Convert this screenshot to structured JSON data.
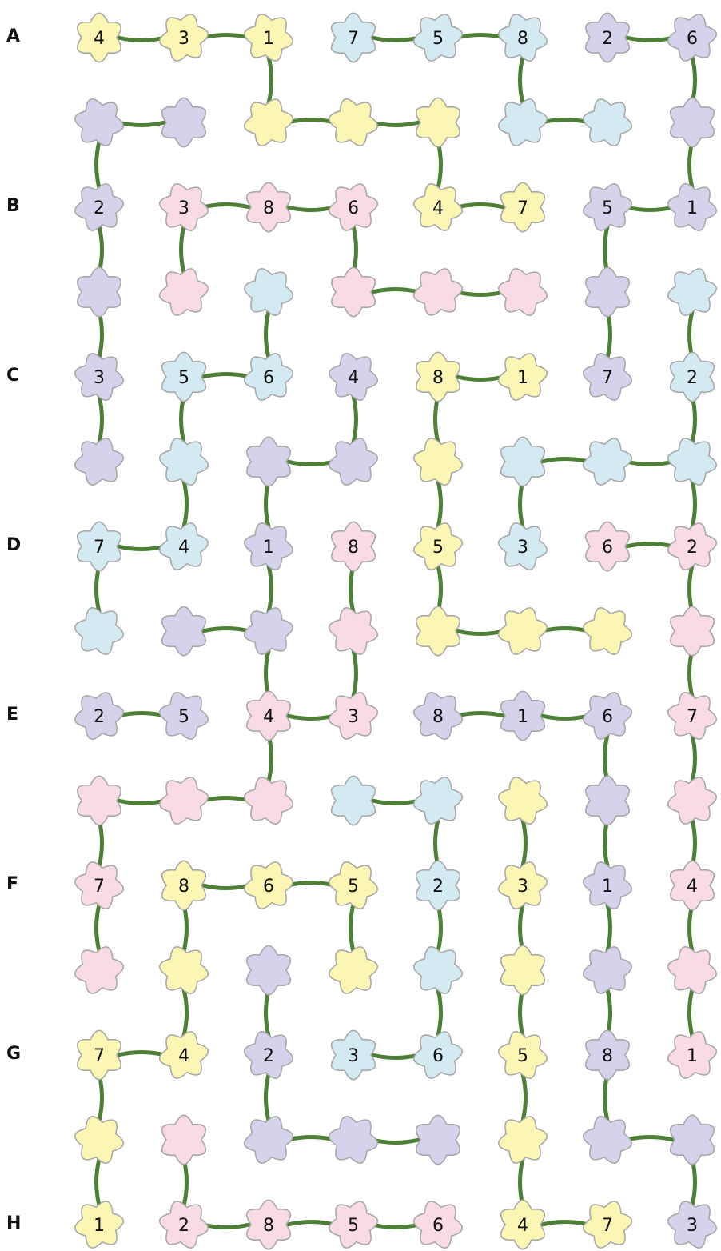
{
  "row_labels": [
    "A",
    "B",
    "C",
    "D",
    "E",
    "F",
    "G",
    "H"
  ],
  "colors": {
    "Y": "#fbf6b4",
    "B": "#d4eaf2",
    "P": "#d5d3eb",
    "K": "#f8dbe5",
    "outline": "#a8a8a8",
    "stem": "#4d7f36"
  },
  "flower_rows": [
    [
      "Y",
      "Y",
      "Y",
      "B",
      "B",
      "B",
      "P",
      "P"
    ],
    [
      "P",
      "P",
      "Y",
      "Y",
      "Y",
      "B",
      "B",
      "P"
    ],
    [
      "P",
      "K",
      "K",
      "K",
      "Y",
      "Y",
      "P",
      "P"
    ],
    [
      "P",
      "K",
      "B",
      "K",
      "K",
      "K",
      "P",
      "B"
    ],
    [
      "P",
      "B",
      "B",
      "P",
      "Y",
      "Y",
      "P",
      "B"
    ],
    [
      "P",
      "B",
      "P",
      "P",
      "Y",
      "B",
      "B",
      "B"
    ],
    [
      "B",
      "B",
      "P",
      "K",
      "Y",
      "B",
      "K",
      "K"
    ],
    [
      "B",
      "P",
      "P",
      "K",
      "Y",
      "Y",
      "Y",
      "K"
    ],
    [
      "P",
      "P",
      "K",
      "K",
      "P",
      "P",
      "P",
      "K"
    ],
    [
      "K",
      "K",
      "K",
      "B",
      "B",
      "Y",
      "P",
      "K"
    ],
    [
      "K",
      "Y",
      "Y",
      "Y",
      "B",
      "Y",
      "P",
      "K"
    ],
    [
      "K",
      "Y",
      "P",
      "Y",
      "B",
      "Y",
      "P",
      "K"
    ],
    [
      "Y",
      "Y",
      "P",
      "B",
      "B",
      "Y",
      "P",
      "K"
    ],
    [
      "Y",
      "K",
      "P",
      "P",
      "P",
      "Y",
      "P",
      "P"
    ],
    [
      "Y",
      "K",
      "K",
      "K",
      "K",
      "Y",
      "Y",
      "P"
    ]
  ],
  "numbers": [
    [
      "4",
      "3",
      "1",
      "7",
      "5",
      "8",
      "2",
      "6"
    ],
    [
      "2",
      "3",
      "8",
      "6",
      "4",
      "7",
      "5",
      "1"
    ],
    [
      "3",
      "5",
      "6",
      "4",
      "8",
      "1",
      "7",
      "2"
    ],
    [
      "7",
      "4",
      "1",
      "8",
      "5",
      "3",
      "6",
      "2"
    ],
    [
      "2",
      "5",
      "4",
      "3",
      "8",
      "1",
      "6",
      "7"
    ],
    [
      "7",
      "8",
      "6",
      "5",
      "2",
      "3",
      "1",
      "4"
    ],
    [
      "7",
      "4",
      "2",
      "3",
      "6",
      "5",
      "8",
      "1"
    ],
    [
      "1",
      "2",
      "8",
      "5",
      "6",
      "4",
      "7",
      "3"
    ]
  ],
  "stems": [
    [
      [
        0,
        0
      ],
      [
        0,
        1
      ]
    ],
    [
      [
        0,
        1
      ],
      [
        0,
        2
      ]
    ],
    [
      [
        0,
        3
      ],
      [
        0,
        4
      ]
    ],
    [
      [
        0,
        4
      ],
      [
        0,
        5
      ]
    ],
    [
      [
        0,
        6
      ],
      [
        0,
        7
      ]
    ],
    [
      [
        0,
        2
      ],
      [
        1,
        2
      ]
    ],
    [
      [
        0,
        5
      ],
      [
        1,
        5
      ]
    ],
    [
      [
        0,
        7
      ],
      [
        1,
        7
      ]
    ],
    [
      [
        1,
        0
      ],
      [
        1,
        1
      ]
    ],
    [
      [
        1,
        2
      ],
      [
        1,
        3
      ]
    ],
    [
      [
        1,
        3
      ],
      [
        1,
        4
      ]
    ],
    [
      [
        1,
        5
      ],
      [
        1,
        6
      ]
    ],
    [
      [
        1,
        0
      ],
      [
        2,
        0
      ]
    ],
    [
      [
        1,
        4
      ],
      [
        2,
        4
      ]
    ],
    [
      [
        1,
        7
      ],
      [
        2,
        7
      ]
    ],
    [
      [
        2,
        1
      ],
      [
        2,
        2
      ]
    ],
    [
      [
        2,
        2
      ],
      [
        2,
        3
      ]
    ],
    [
      [
        2,
        4
      ],
      [
        2,
        5
      ]
    ],
    [
      [
        2,
        6
      ],
      [
        2,
        7
      ]
    ],
    [
      [
        2,
        0
      ],
      [
        3,
        0
      ]
    ],
    [
      [
        2,
        1
      ],
      [
        3,
        1
      ]
    ],
    [
      [
        2,
        3
      ],
      [
        3,
        3
      ]
    ],
    [
      [
        2,
        6
      ],
      [
        3,
        6
      ]
    ],
    [
      [
        3,
        3
      ],
      [
        3,
        4
      ]
    ],
    [
      [
        3,
        4
      ],
      [
        3,
        5
      ]
    ],
    [
      [
        3,
        0
      ],
      [
        4,
        0
      ]
    ],
    [
      [
        3,
        2
      ],
      [
        4,
        2
      ]
    ],
    [
      [
        3,
        6
      ],
      [
        4,
        6
      ]
    ],
    [
      [
        3,
        7
      ],
      [
        4,
        7
      ]
    ],
    [
      [
        4,
        1
      ],
      [
        4,
        2
      ]
    ],
    [
      [
        4,
        4
      ],
      [
        4,
        5
      ]
    ],
    [
      [
        4,
        0
      ],
      [
        5,
        0
      ]
    ],
    [
      [
        4,
        1
      ],
      [
        5,
        1
      ]
    ],
    [
      [
        4,
        3
      ],
      [
        5,
        3
      ]
    ],
    [
      [
        4,
        4
      ],
      [
        5,
        4
      ]
    ],
    [
      [
        4,
        7
      ],
      [
        5,
        7
      ]
    ],
    [
      [
        5,
        2
      ],
      [
        5,
        3
      ]
    ],
    [
      [
        5,
        5
      ],
      [
        5,
        6
      ]
    ],
    [
      [
        5,
        6
      ],
      [
        5,
        7
      ]
    ],
    [
      [
        5,
        1
      ],
      [
        6,
        1
      ]
    ],
    [
      [
        5,
        2
      ],
      [
        6,
        2
      ]
    ],
    [
      [
        5,
        4
      ],
      [
        6,
        4
      ]
    ],
    [
      [
        5,
        5
      ],
      [
        6,
        5
      ]
    ],
    [
      [
        5,
        7
      ],
      [
        6,
        7
      ]
    ],
    [
      [
        6,
        0
      ],
      [
        6,
        1
      ]
    ],
    [
      [
        6,
        6
      ],
      [
        6,
        7
      ]
    ],
    [
      [
        6,
        0
      ],
      [
        7,
        0
      ]
    ],
    [
      [
        6,
        2
      ],
      [
        7,
        2
      ]
    ],
    [
      [
        6,
        3
      ],
      [
        7,
        3
      ]
    ],
    [
      [
        6,
        4
      ],
      [
        7,
        4
      ]
    ],
    [
      [
        6,
        7
      ],
      [
        7,
        7
      ]
    ],
    [
      [
        7,
        1
      ],
      [
        7,
        2
      ]
    ],
    [
      [
        7,
        4
      ],
      [
        7,
        5
      ]
    ],
    [
      [
        7,
        5
      ],
      [
        7,
        6
      ]
    ],
    [
      [
        7,
        2
      ],
      [
        8,
        2
      ]
    ],
    [
      [
        7,
        3
      ],
      [
        8,
        3
      ]
    ],
    [
      [
        7,
        7
      ],
      [
        8,
        7
      ]
    ],
    [
      [
        8,
        0
      ],
      [
        8,
        1
      ]
    ],
    [
      [
        8,
        2
      ],
      [
        8,
        3
      ]
    ],
    [
      [
        8,
        4
      ],
      [
        8,
        5
      ]
    ],
    [
      [
        8,
        5
      ],
      [
        8,
        6
      ]
    ],
    [
      [
        8,
        2
      ],
      [
        9,
        2
      ]
    ],
    [
      [
        8,
        6
      ],
      [
        9,
        6
      ]
    ],
    [
      [
        8,
        7
      ],
      [
        9,
        7
      ]
    ],
    [
      [
        9,
        0
      ],
      [
        9,
        1
      ]
    ],
    [
      [
        9,
        1
      ],
      [
        9,
        2
      ]
    ],
    [
      [
        9,
        3
      ],
      [
        9,
        4
      ]
    ],
    [
      [
        9,
        0
      ],
      [
        10,
        0
      ]
    ],
    [
      [
        9,
        4
      ],
      [
        10,
        4
      ]
    ],
    [
      [
        9,
        5
      ],
      [
        10,
        5
      ]
    ],
    [
      [
        9,
        6
      ],
      [
        10,
        6
      ]
    ],
    [
      [
        9,
        7
      ],
      [
        10,
        7
      ]
    ],
    [
      [
        10,
        1
      ],
      [
        10,
        2
      ]
    ],
    [
      [
        10,
        2
      ],
      [
        10,
        3
      ]
    ],
    [
      [
        10,
        0
      ],
      [
        11,
        0
      ]
    ],
    [
      [
        10,
        1
      ],
      [
        11,
        1
      ]
    ],
    [
      [
        10,
        3
      ],
      [
        11,
        3
      ]
    ],
    [
      [
        10,
        4
      ],
      [
        11,
        4
      ]
    ],
    [
      [
        10,
        5
      ],
      [
        11,
        5
      ]
    ],
    [
      [
        10,
        6
      ],
      [
        11,
        6
      ]
    ],
    [
      [
        10,
        7
      ],
      [
        11,
        7
      ]
    ],
    [
      [
        11,
        1
      ],
      [
        12,
        1
      ]
    ],
    [
      [
        11,
        2
      ],
      [
        12,
        2
      ]
    ],
    [
      [
        11,
        4
      ],
      [
        12,
        4
      ]
    ],
    [
      [
        11,
        5
      ],
      [
        12,
        5
      ]
    ],
    [
      [
        11,
        6
      ],
      [
        12,
        6
      ]
    ],
    [
      [
        11,
        7
      ],
      [
        12,
        7
      ]
    ],
    [
      [
        12,
        0
      ],
      [
        12,
        1
      ]
    ],
    [
      [
        12,
        3
      ],
      [
        12,
        4
      ]
    ],
    [
      [
        12,
        0
      ],
      [
        13,
        0
      ]
    ],
    [
      [
        12,
        2
      ],
      [
        13,
        2
      ]
    ],
    [
      [
        12,
        5
      ],
      [
        13,
        5
      ]
    ],
    [
      [
        12,
        6
      ],
      [
        13,
        6
      ]
    ],
    [
      [
        13,
        2
      ],
      [
        13,
        3
      ]
    ],
    [
      [
        13,
        3
      ],
      [
        13,
        4
      ]
    ],
    [
      [
        13,
        6
      ],
      [
        13,
        7
      ]
    ],
    [
      [
        13,
        0
      ],
      [
        14,
        0
      ]
    ],
    [
      [
        13,
        1
      ],
      [
        14,
        1
      ]
    ],
    [
      [
        13,
        5
      ],
      [
        14,
        5
      ]
    ],
    [
      [
        13,
        7
      ],
      [
        14,
        7
      ]
    ],
    [
      [
        14,
        1
      ],
      [
        14,
        2
      ]
    ],
    [
      [
        14,
        2
      ],
      [
        14,
        3
      ]
    ],
    [
      [
        14,
        3
      ],
      [
        14,
        4
      ]
    ],
    [
      [
        14,
        5
      ],
      [
        14,
        6
      ]
    ]
  ]
}
